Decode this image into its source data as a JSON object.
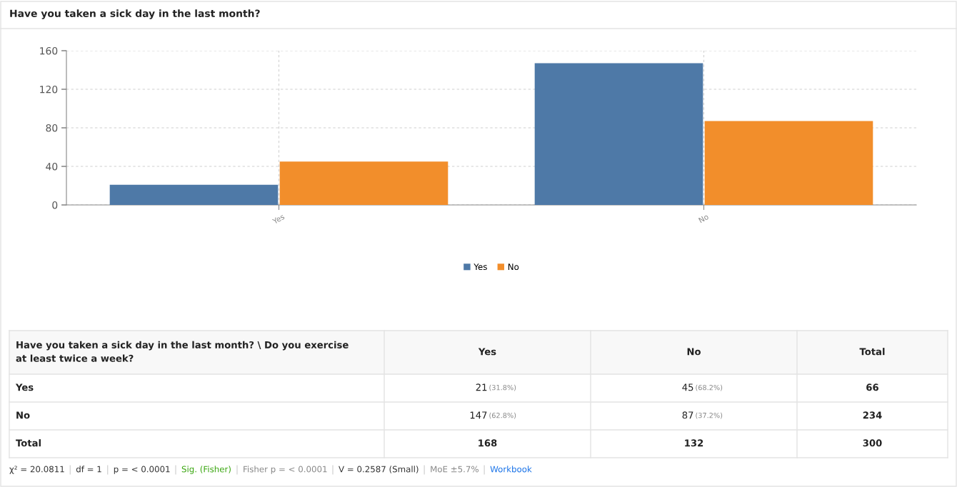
{
  "chart_data": {
    "type": "bar",
    "title": "Have you taken a sick day in the last month?",
    "categories": [
      "Yes",
      "No"
    ],
    "series": [
      {
        "name": "Yes",
        "color": "#4e79a7",
        "values": [
          21,
          147
        ]
      },
      {
        "name": "No",
        "color": "#f28e2b",
        "values": [
          45,
          87
        ]
      }
    ],
    "ylim": [
      0,
      160
    ],
    "yticks": [
      0,
      40,
      80,
      120,
      160
    ],
    "grid": true,
    "legend": "bottom",
    "annotations": [
      "Have you taken a sick day in the last month? \\ Do you exercise at least twice a week?",
      "Total",
      "Total",
      "21",
      "45",
      "147",
      "87",
      "(31.8%)",
      "(68.2%)",
      "(62.8%)",
      "(37.2%)",
      "66",
      "234",
      "168",
      "132",
      "300",
      "χ² = 20.0811",
      "df = 1",
      "p = < 0.0001",
      "Sig. (Fisher)",
      "Fisher p = < 0.0001",
      "V = 0.2587 (Small)",
      "MoE ±5.7%",
      "Workbook"
    ]
  }
}
